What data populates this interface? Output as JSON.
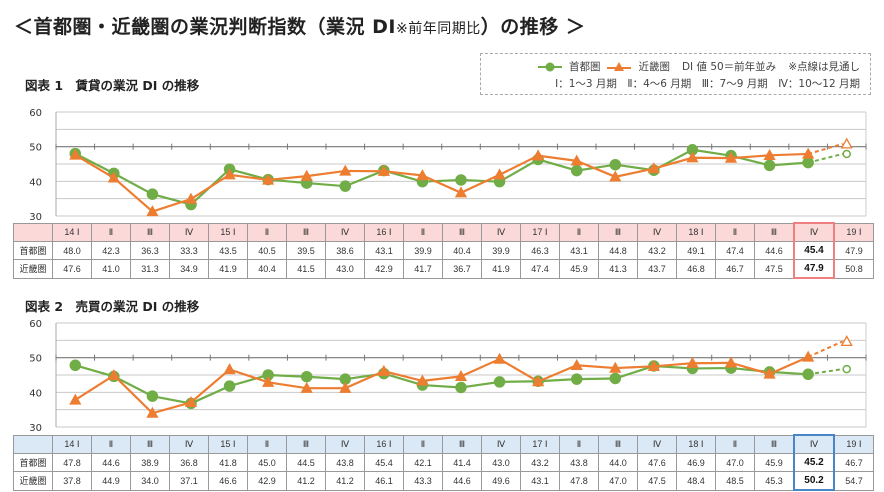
{
  "page": {
    "title_main": "＜首都圏・近畿圏の業況判断指数（業況 DI",
    "title_note": "※前年同期比",
    "title_end": "）の推移 ＞"
  },
  "legend": {
    "series1": "首都圏",
    "series2": "近畿圏",
    "baseline_note": "DI 値 50＝前年並み",
    "dotted_note": "※点線は見通し",
    "quarters": "Ⅰ：1～3 月期　Ⅱ：4～6 月期　Ⅲ：7～9 月期　Ⅳ：10～12 月期"
  },
  "colors": {
    "shutoken": "#70ad47",
    "kinki": "#ed7d31",
    "table1_header": "#fcd9d9",
    "table1_highlight": "#f08080",
    "table2_header": "#dbe8f5",
    "table2_highlight": "#4a86c5"
  },
  "tables": {
    "row_label_1": "首都圏",
    "row_label_2": "近畿圏"
  },
  "chart_data": [
    {
      "type": "line",
      "title": "図表 1　賃貸の業況 DI の推移",
      "categories": [
        "14 Ⅰ",
        "Ⅱ",
        "Ⅲ",
        "Ⅳ",
        "15 Ⅰ",
        "Ⅱ",
        "Ⅲ",
        "Ⅳ",
        "16 Ⅰ",
        "Ⅱ",
        "Ⅲ",
        "Ⅳ",
        "17 Ⅰ",
        "Ⅱ",
        "Ⅲ",
        "Ⅳ",
        "18 Ⅰ",
        "Ⅱ",
        "Ⅲ",
        "Ⅳ",
        "19 Ⅰ"
      ],
      "series": [
        {
          "name": "首都圏",
          "marker": "circle",
          "values": [
            48.0,
            42.3,
            36.3,
            33.3,
            43.5,
            40.5,
            39.5,
            38.6,
            43.1,
            39.9,
            40.4,
            39.9,
            46.3,
            43.1,
            44.8,
            43.2,
            49.1,
            47.4,
            44.6,
            45.4,
            47.9
          ]
        },
        {
          "name": "近畿圏",
          "marker": "triangle",
          "values": [
            47.6,
            41.0,
            31.3,
            34.9,
            41.9,
            40.4,
            41.5,
            43.0,
            42.9,
            41.7,
            36.7,
            41.9,
            47.4,
            45.9,
            41.3,
            43.7,
            46.8,
            46.7,
            47.5,
            47.9,
            50.8
          ]
        }
      ],
      "forecast_index": 20,
      "highlight_index": 19,
      "ylim": [
        30,
        60
      ],
      "yticks": [
        30,
        40,
        50,
        60
      ],
      "xlabel": "",
      "ylabel": "",
      "grid": true,
      "legend_position": "top-right"
    },
    {
      "type": "line",
      "title": "図表 2　売買の業況 DI の推移",
      "categories": [
        "14 Ⅰ",
        "Ⅱ",
        "Ⅲ",
        "Ⅳ",
        "15 Ⅰ",
        "Ⅱ",
        "Ⅲ",
        "Ⅳ",
        "16 Ⅰ",
        "Ⅱ",
        "Ⅲ",
        "Ⅳ",
        "17 Ⅰ",
        "Ⅱ",
        "Ⅲ",
        "Ⅳ",
        "18 Ⅰ",
        "Ⅱ",
        "Ⅲ",
        "Ⅳ",
        "19 Ⅰ"
      ],
      "series": [
        {
          "name": "首都圏",
          "marker": "circle",
          "values": [
            47.8,
            44.6,
            38.9,
            36.8,
            41.8,
            45.0,
            44.5,
            43.8,
            45.4,
            42.1,
            41.4,
            43.0,
            43.2,
            43.8,
            44.0,
            47.6,
            46.9,
            47.0,
            45.9,
            45.2,
            46.7
          ]
        },
        {
          "name": "近畿圏",
          "marker": "triangle",
          "values": [
            37.8,
            44.9,
            34.0,
            37.1,
            46.6,
            42.9,
            41.2,
            41.2,
            46.1,
            43.3,
            44.6,
            49.6,
            43.1,
            47.8,
            47.0,
            47.5,
            48.4,
            48.5,
            45.3,
            50.2,
            54.7
          ]
        }
      ],
      "forecast_index": 20,
      "highlight_index": 19,
      "ylim": [
        30,
        60
      ],
      "yticks": [
        30,
        40,
        50,
        60
      ],
      "xlabel": "",
      "ylabel": "",
      "grid": true
    }
  ]
}
